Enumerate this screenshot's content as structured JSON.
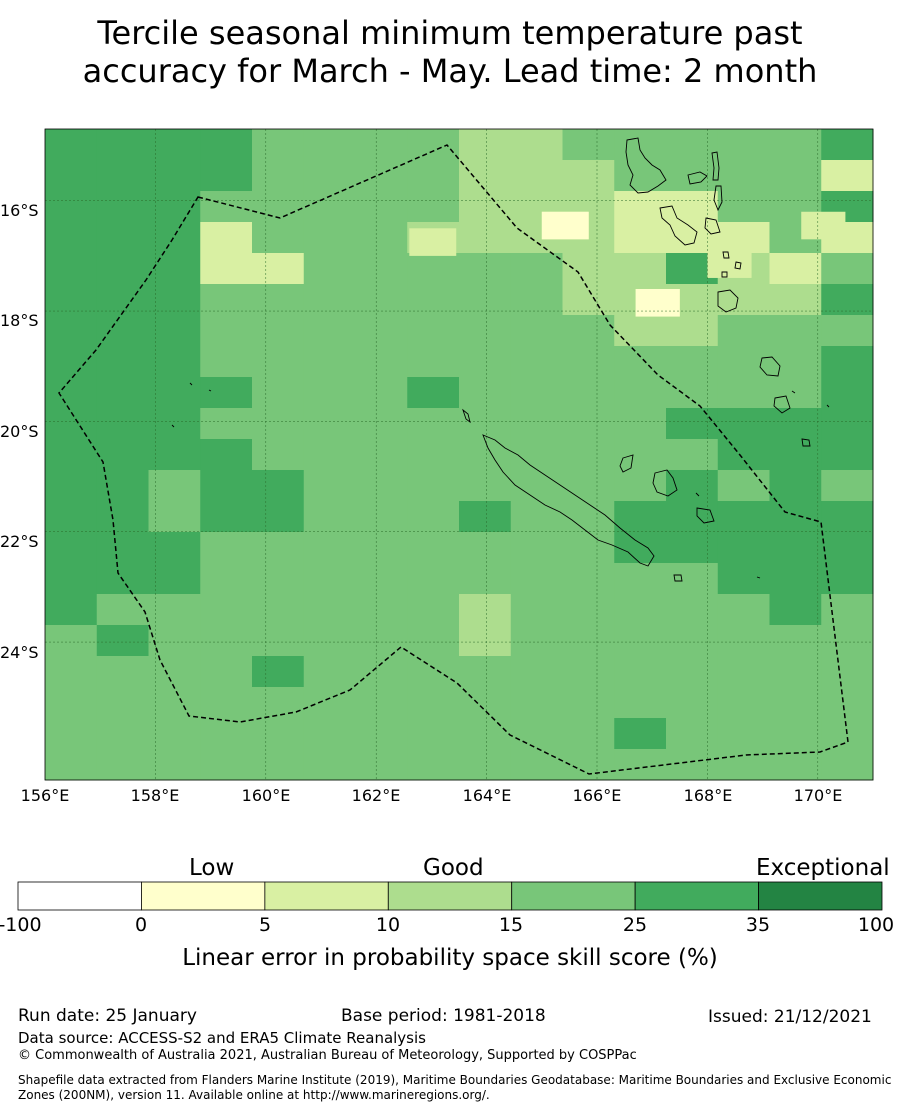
{
  "title": {
    "line1": "Tercile seasonal minimum temperature past",
    "line2": "accuracy for March - May. Lead time: 2 month"
  },
  "map": {
    "lon_range": [
      156,
      171
    ],
    "lat_range": [
      -26.5,
      -14.7
    ],
    "lon_ticks": [
      "156°E",
      "158°E",
      "160°E",
      "162°E",
      "164°E",
      "166°E",
      "168°E",
      "170°E"
    ],
    "lat_ticks": [
      "16°S",
      "18°S",
      "20°S",
      "22°S",
      "24°S"
    ],
    "grid_lines": true,
    "boundary_style": "dashed",
    "grid_rows_categories": [
      "3333000011000003",
      "3333000011100002",
      "3330000011122003",
      "3332000111122202",
      "3332200000113120",
      "3330000000111113",
      "3330000000011000",
      "3330000000000003",
      "3333000300000003",
      "3330000000003333",
      "3333000000000333",
      "3303300000003030",
      "3303300030033333",
      "3330000000033333",
      "3330000000000333",
      "3000000010000030",
      "0300000010000000",
      "0000300000000000",
      "0000000000000000",
      "0000000000030000",
      "0000000000000000"
    ]
  },
  "legend": {
    "categories": [
      "Low",
      "Good",
      "Exceptional"
    ],
    "ticks": [
      "-100",
      "0",
      "5",
      "10",
      "15",
      "25",
      "35",
      "100"
    ],
    "colors": [
      "#ffffff",
      "#ffffcc",
      "#d9f0a3",
      "#addd8e",
      "#78c679",
      "#41ab5d",
      "#238443"
    ],
    "title": "Linear error in probability space skill score (%)"
  },
  "footer": {
    "run_date": "Run date: 25 January",
    "base_period": "Base period: 1981-2018",
    "issued": "Issued: 21/12/2021",
    "data_source": "Data source: ACCESS-S2 and ERA5 Climate Reanalysis",
    "copyright": "© Commonwealth of Australia 2021, Australian Bureau of Meteorology, Supported by COSPPac",
    "shapefile": "Shapefile data extracted from Flanders Marine Institute (2019), Maritime Boundaries Geodatabase: Maritime Boundaries and Exclusive Economic Zones (200NM), version 11. Available online at http://www.marineregions.org/."
  }
}
